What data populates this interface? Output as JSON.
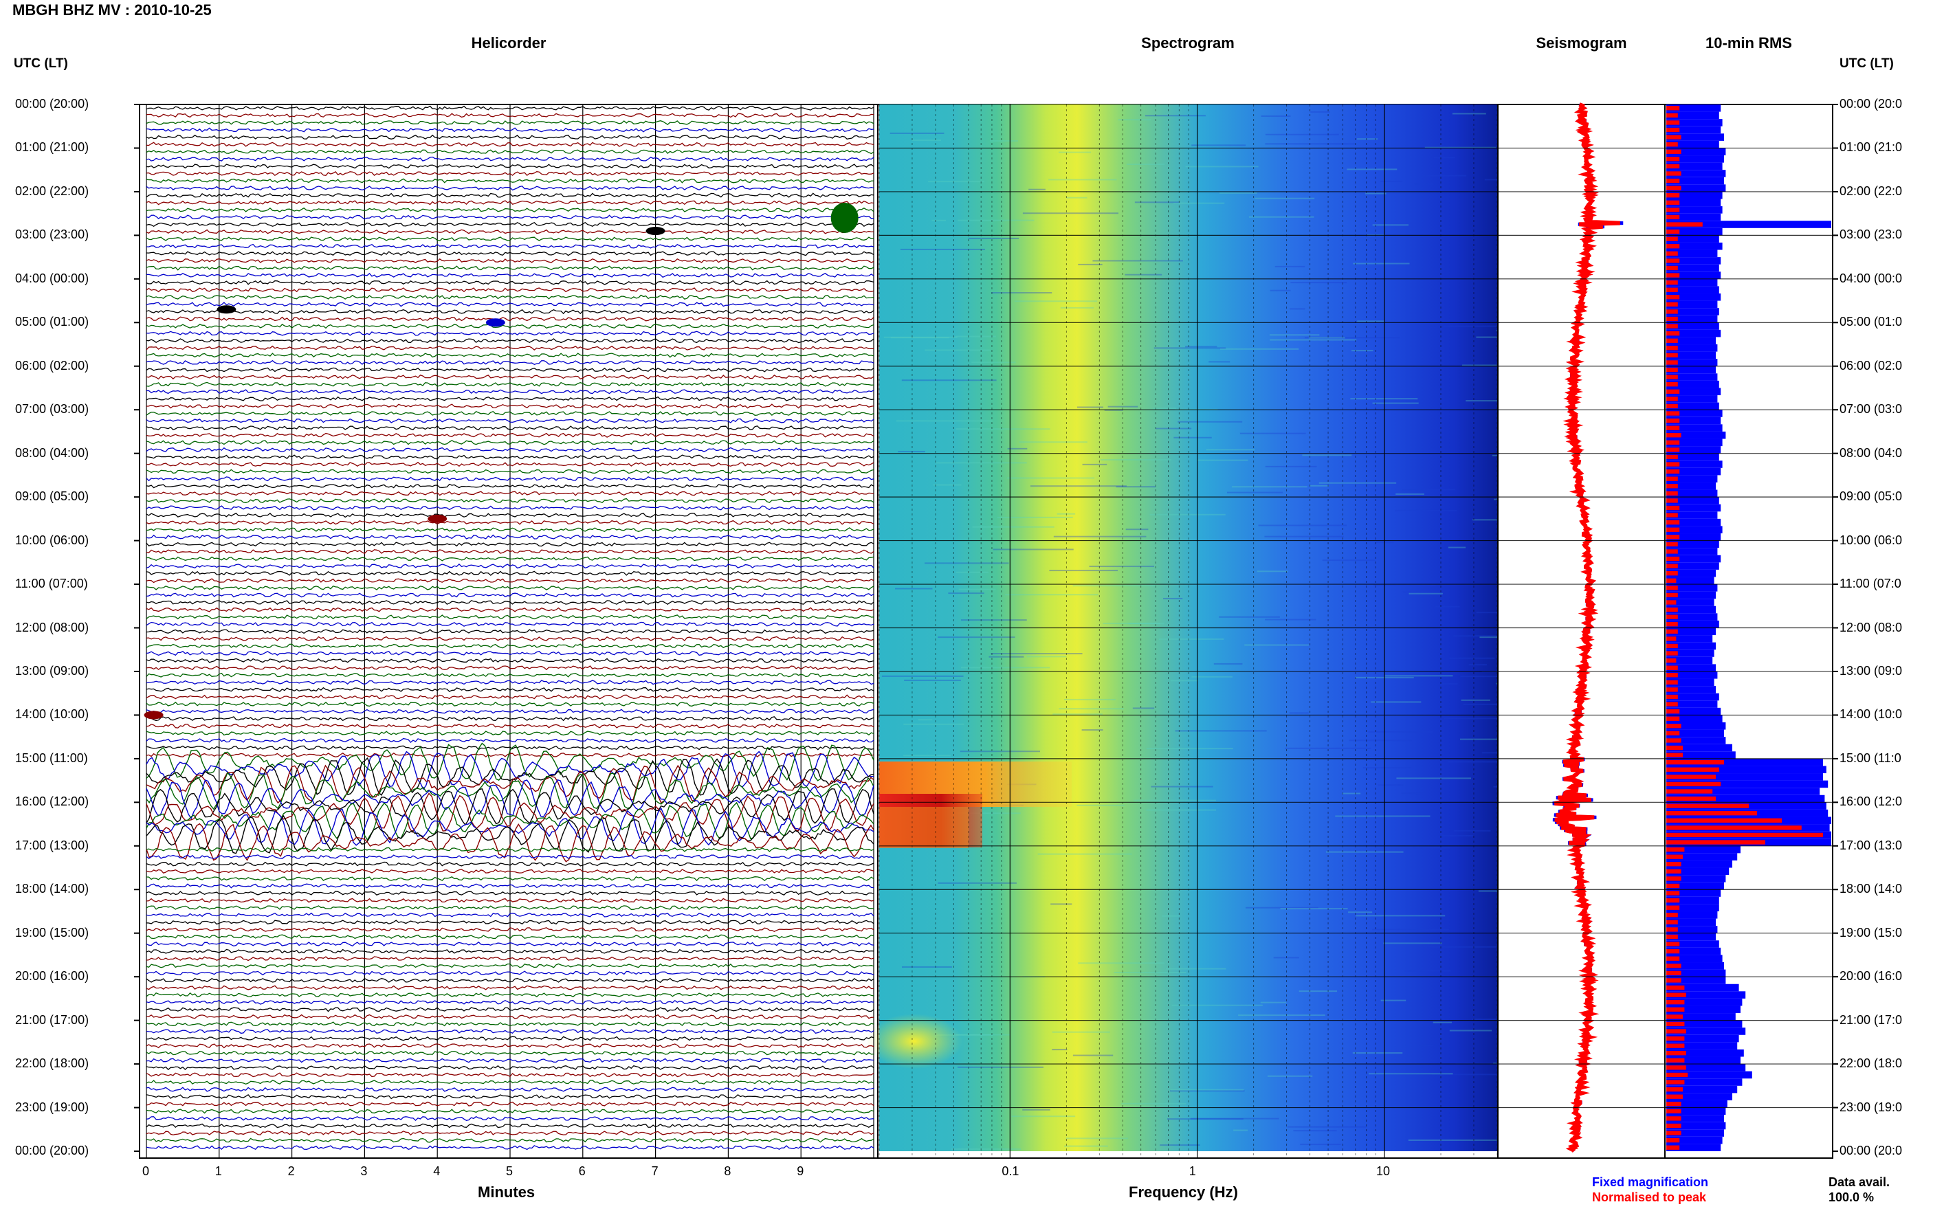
{
  "title": "MBGH BHZ MV : 2010-10-25",
  "panels": {
    "helicorder": "Helicorder",
    "spectrogram": "Spectrogram",
    "seismogram": "Seismogram",
    "rms": "10-min RMS"
  },
  "axis_header_left": "UTC (LT)",
  "axis_header_right": "UTC (LT)",
  "time_labels": [
    "00:00 (20:00)",
    "01:00 (21:00)",
    "02:00 (22:00)",
    "03:00 (23:00)",
    "04:00 (00:00)",
    "05:00 (01:00)",
    "06:00 (02:00)",
    "07:00 (03:00)",
    "08:00 (04:00)",
    "09:00 (05:00)",
    "10:00 (06:00)",
    "11:00 (07:00)",
    "12:00 (08:00)",
    "13:00 (09:00)",
    "14:00 (10:00)",
    "15:00 (11:00)",
    "16:00 (12:00)",
    "17:00 (13:00)",
    "18:00 (14:00)",
    "19:00 (15:00)",
    "20:00 (16:00)",
    "21:00 (17:00)",
    "22:00 (18:00)",
    "23:00 (19:00)",
    "00:00 (20:00)"
  ],
  "time_labels_right": [
    "00:00 (20:0",
    "01:00 (21:0",
    "02:00 (22:0",
    "03:00 (23:0",
    "04:00 (00:0",
    "05:00 (01:0",
    "06:00 (02:0",
    "07:00 (03:0",
    "08:00 (04:0",
    "09:00 (05:0",
    "10:00 (06:0",
    "11:00 (07:0",
    "12:00 (08:0",
    "13:00 (09:0",
    "14:00 (10:0",
    "15:00 (11:0",
    "16:00 (12:0",
    "17:00 (13:0",
    "18:00 (14:0",
    "19:00 (15:0",
    "20:00 (16:0",
    "21:00 (17:0",
    "22:00 (18:0",
    "23:00 (19:0",
    "00:00 (20:0"
  ],
  "helicorder_xlabel": "Minutes",
  "helicorder_ticks": [
    "0",
    "1",
    "2",
    "3",
    "4",
    "5",
    "6",
    "7",
    "8",
    "9"
  ],
  "spectrogram_xlabel": "Frequency (Hz)",
  "spectrogram_ticks": [
    "0.1",
    "1",
    "10"
  ],
  "legend": {
    "fixed": "Fixed magnification",
    "normalised": "Normalised to peak"
  },
  "data_avail_label": "Data avail.",
  "data_avail_value": "100.0 %",
  "colors": {
    "trace_colors": [
      "#000000",
      "#8b0000",
      "#006400",
      "#0000cd"
    ],
    "fixed": "#0000ff",
    "normalised": "#ff0000",
    "legend_fixed": "#0000ff",
    "legend_normalised": "#ff0000"
  },
  "chart_data": [
    {
      "type": "line",
      "title": "Helicorder",
      "xlabel": "Minutes",
      "ylabel": "UTC (LT)",
      "xlim": [
        0,
        10
      ],
      "rows": 144,
      "note_events": [
        {
          "hour": 2.6,
          "minute": 9.6,
          "color": "green"
        },
        {
          "hour": 2.9,
          "minute": 7.0,
          "color": "black"
        },
        {
          "hour": 4.7,
          "minute": 1.1,
          "color": "black"
        },
        {
          "hour": 5.0,
          "minute": 4.8,
          "color": "blue"
        },
        {
          "hour": 9.5,
          "minute": 4.0,
          "color": "darkred"
        },
        {
          "hour": 14.0,
          "minute": 0.1,
          "color": "darkred"
        }
      ],
      "high_amplitude_period_hours": [
        15.0,
        17.0
      ]
    },
    {
      "type": "heatmap",
      "title": "Spectrogram",
      "xlabel": "Frequency (Hz)",
      "xscale": "log",
      "xlim": [
        0.02,
        40
      ],
      "colormap": "jet",
      "hot_regions": [
        {
          "hours": [
            15.0,
            15.9
          ],
          "freq_hz": [
            0.02,
            0.3
          ]
        },
        {
          "hours": [
            15.9,
            17.0
          ],
          "freq_hz": [
            0.02,
            0.08
          ]
        },
        {
          "hours": [
            20.8,
            21.8
          ],
          "freq_hz": [
            0.04,
            0.07
          ]
        }
      ]
    },
    {
      "type": "bar",
      "title": "10-min RMS",
      "orientation": "horizontal",
      "series": [
        {
          "name": "Fixed magnification",
          "color": "#0000ff",
          "values": [
            0.33,
            0.32,
            0.34,
            0.33,
            0.35,
            0.32,
            0.36,
            0.35,
            0.34,
            0.36,
            0.35,
            0.36,
            0.34,
            0.33,
            0.34,
            0.33,
            1.0,
            0.34,
            0.32,
            0.34,
            0.31,
            0.33,
            0.32,
            0.33,
            0.31,
            0.32,
            0.33,
            0.31,
            0.32,
            0.31,
            0.32,
            0.33,
            0.3,
            0.31,
            0.3,
            0.31,
            0.3,
            0.31,
            0.32,
            0.33,
            0.31,
            0.32,
            0.34,
            0.33,
            0.34,
            0.36,
            0.34,
            0.33,
            0.32,
            0.34,
            0.33,
            0.31,
            0.3,
            0.31,
            0.32,
            0.33,
            0.31,
            0.33,
            0.34,
            0.33,
            0.32,
            0.31,
            0.33,
            0.32,
            0.3,
            0.29,
            0.31,
            0.3,
            0.29,
            0.3,
            0.31,
            0.32,
            0.3,
            0.28,
            0.3,
            0.29,
            0.28,
            0.3,
            0.31,
            0.29,
            0.3,
            0.32,
            0.31,
            0.33,
            0.34,
            0.36,
            0.35,
            0.36,
            0.4,
            0.42,
            0.95,
            0.97,
            0.95,
            0.98,
            0.93,
            0.96,
            0.97,
            0.98,
            1.0,
            0.99,
            1.0,
            1.0,
            0.45,
            0.43,
            0.4,
            0.38,
            0.36,
            0.35,
            0.33,
            0.32,
            0.32,
            0.31,
            0.3,
            0.31,
            0.3,
            0.32,
            0.33,
            0.34,
            0.35,
            0.36,
            0.36,
            0.44,
            0.48,
            0.46,
            0.45,
            0.42,
            0.46,
            0.48,
            0.44,
            0.43,
            0.47,
            0.45,
            0.48,
            0.52,
            0.46,
            0.43,
            0.4,
            0.37,
            0.36,
            0.35,
            0.36,
            0.35,
            0.34,
            0.33
          ]
        },
        {
          "name": "Normalised to peak",
          "color": "#ff0000",
          "values": [
            0.08,
            0.07,
            0.08,
            0.08,
            0.09,
            0.07,
            0.09,
            0.08,
            0.08,
            0.09,
            0.08,
            0.09,
            0.08,
            0.08,
            0.08,
            0.08,
            0.22,
            0.08,
            0.07,
            0.08,
            0.07,
            0.08,
            0.07,
            0.08,
            0.07,
            0.07,
            0.08,
            0.07,
            0.07,
            0.07,
            0.07,
            0.08,
            0.07,
            0.07,
            0.07,
            0.07,
            0.07,
            0.07,
            0.07,
            0.08,
            0.07,
            0.07,
            0.08,
            0.08,
            0.08,
            0.09,
            0.08,
            0.08,
            0.07,
            0.08,
            0.08,
            0.07,
            0.07,
            0.07,
            0.07,
            0.08,
            0.07,
            0.08,
            0.08,
            0.08,
            0.07,
            0.07,
            0.08,
            0.07,
            0.07,
            0.06,
            0.07,
            0.07,
            0.06,
            0.07,
            0.07,
            0.07,
            0.07,
            0.06,
            0.07,
            0.07,
            0.06,
            0.07,
            0.07,
            0.07,
            0.07,
            0.07,
            0.07,
            0.08,
            0.08,
            0.09,
            0.08,
            0.09,
            0.1,
            0.1,
            0.35,
            0.32,
            0.3,
            0.33,
            0.28,
            0.3,
            0.5,
            0.55,
            0.7,
            0.82,
            0.95,
            0.6,
            0.11,
            0.1,
            0.09,
            0.09,
            0.09,
            0.08,
            0.08,
            0.08,
            0.08,
            0.07,
            0.07,
            0.07,
            0.07,
            0.08,
            0.08,
            0.08,
            0.09,
            0.09,
            0.09,
            0.11,
            0.12,
            0.11,
            0.11,
            0.1,
            0.11,
            0.12,
            0.11,
            0.11,
            0.12,
            0.11,
            0.12,
            0.13,
            0.11,
            0.1,
            0.1,
            0.09,
            0.09,
            0.09,
            0.09,
            0.09,
            0.08,
            0.08
          ]
        }
      ]
    }
  ]
}
